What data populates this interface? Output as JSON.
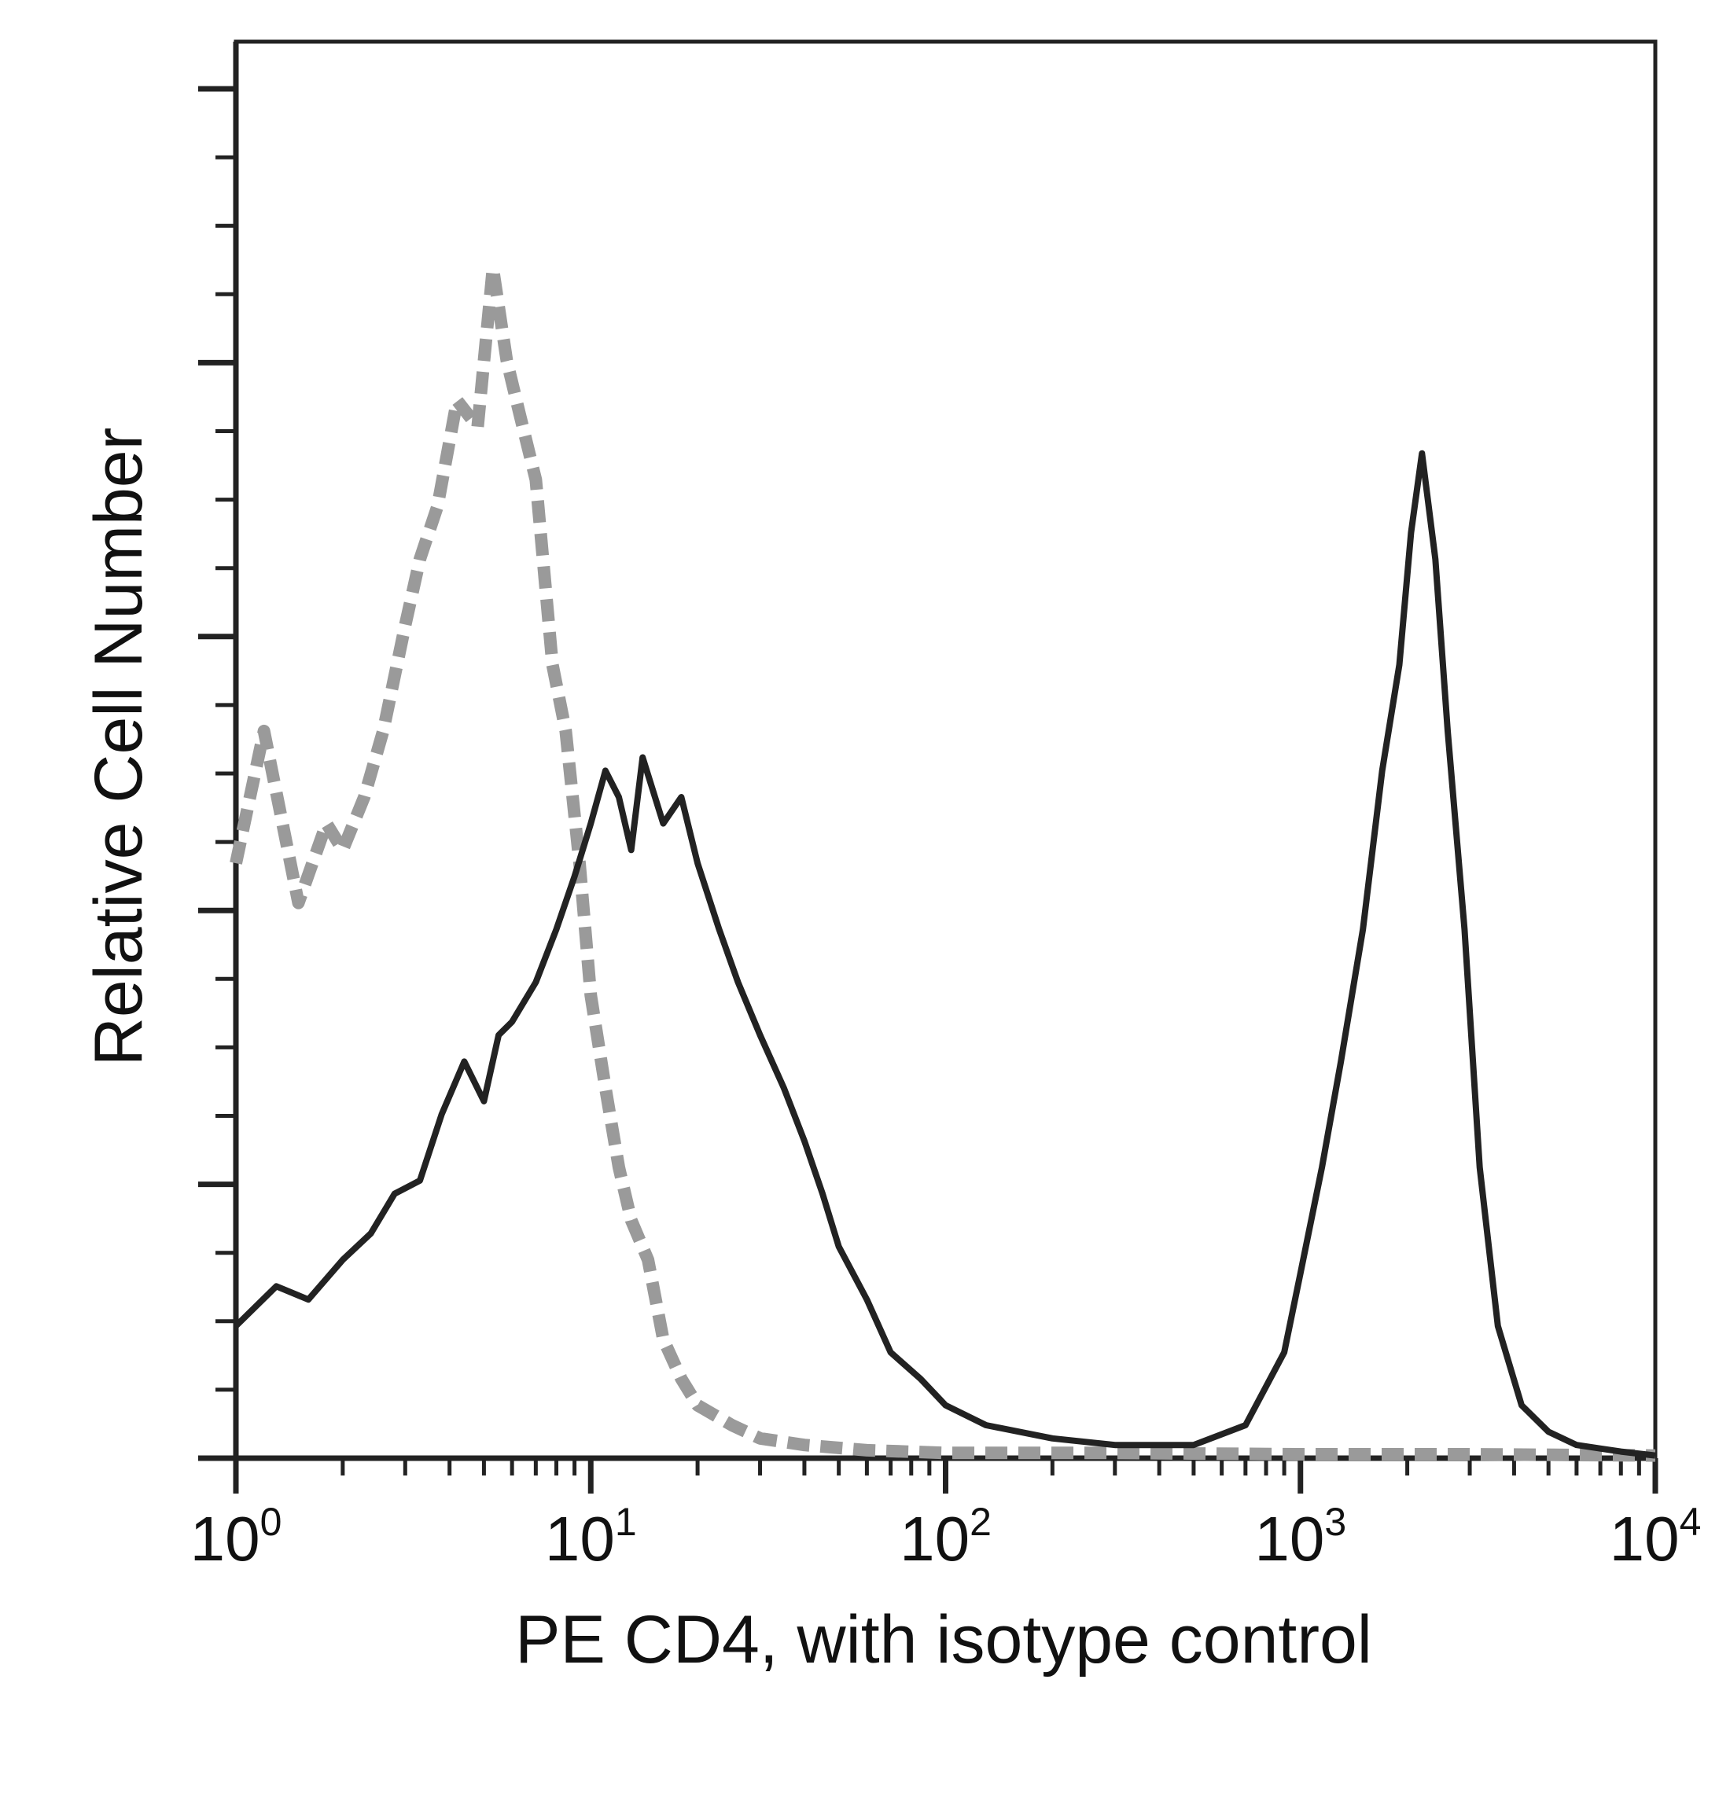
{
  "chart_data": {
    "type": "line",
    "title": "",
    "xlabel": "PE CD4, with isotype control",
    "ylabel": "Relative Cell Number",
    "x_scale": "log",
    "xlim": [
      1,
      10000
    ],
    "x_ticks": [
      {
        "value": 1,
        "base": "10",
        "exp": "0"
      },
      {
        "value": 10,
        "base": "10",
        "exp": "1"
      },
      {
        "value": 100,
        "base": "10",
        "exp": "2"
      },
      {
        "value": 1000,
        "base": "10",
        "exp": "3"
      },
      {
        "value": 10000,
        "base": "10",
        "exp": "4"
      }
    ],
    "ylim": [
      0,
      100
    ],
    "y_tick_labels": "none",
    "grid": false,
    "legend": "none",
    "series": [
      {
        "style": "gray dashed (isotype control)",
        "color": "#9a9a9a",
        "x": [
          1.0,
          1.2,
          1.5,
          1.8,
          2.0,
          2.3,
          2.6,
          3.0,
          3.3,
          3.7,
          4.2,
          4.8,
          5.3,
          5.8,
          6.3,
          7.0,
          7.8,
          8.5,
          9.3,
          10.0,
          11.0,
          12.0,
          13.0,
          14.5,
          16.0,
          18.0,
          20.0,
          25.0,
          30.0,
          40.0,
          60.0,
          100.0,
          300.0,
          1000.0,
          3000.0,
          10000.0
        ],
        "y": [
          45,
          55,
          42,
          48,
          46,
          50,
          55,
          63,
          68,
          72,
          80,
          78,
          90,
          83,
          79,
          74,
          60,
          55,
          45,
          35,
          28,
          22,
          18,
          15,
          9,
          6,
          4,
          2.5,
          1.5,
          1,
          0.6,
          0.4,
          0.4,
          0.3,
          0.3,
          0.2
        ]
      },
      {
        "style": "black solid (PE CD4)",
        "color": "#222222",
        "x": [
          1.0,
          1.3,
          1.6,
          2.0,
          2.4,
          2.8,
          3.3,
          3.8,
          4.4,
          5.0,
          5.5,
          6.0,
          7.0,
          8.0,
          9.0,
          10.0,
          11.0,
          12.0,
          13.0,
          14.0,
          16.0,
          18.0,
          20.0,
          23.0,
          26.0,
          30.0,
          35.0,
          40.0,
          45.0,
          50.0,
          60.0,
          70.0,
          85.0,
          100.0,
          130.0,
          200.0,
          300.0,
          500.0,
          700.0,
          900.0,
          1000.0,
          1150.0,
          1300.0,
          1500.0,
          1700.0,
          1900.0,
          2050.0,
          2200.0,
          2400.0,
          2600.0,
          2900.0,
          3200.0,
          3600.0,
          4200.0,
          5000.0,
          6000.0,
          8000.0,
          10000.0
        ],
        "y": [
          10,
          13,
          12,
          15,
          17,
          20,
          21,
          26,
          30,
          27,
          32,
          33,
          36,
          40,
          44,
          48,
          52,
          50,
          46,
          53,
          48,
          50,
          45,
          40,
          36,
          32,
          28,
          24,
          20,
          16,
          12,
          8,
          6,
          4,
          2.5,
          1.5,
          1,
          1,
          2.5,
          8,
          14,
          22,
          30,
          40,
          52,
          60,
          70,
          76,
          68,
          55,
          40,
          22,
          10,
          4,
          2,
          1,
          0.5,
          0.2
        ]
      }
    ]
  }
}
